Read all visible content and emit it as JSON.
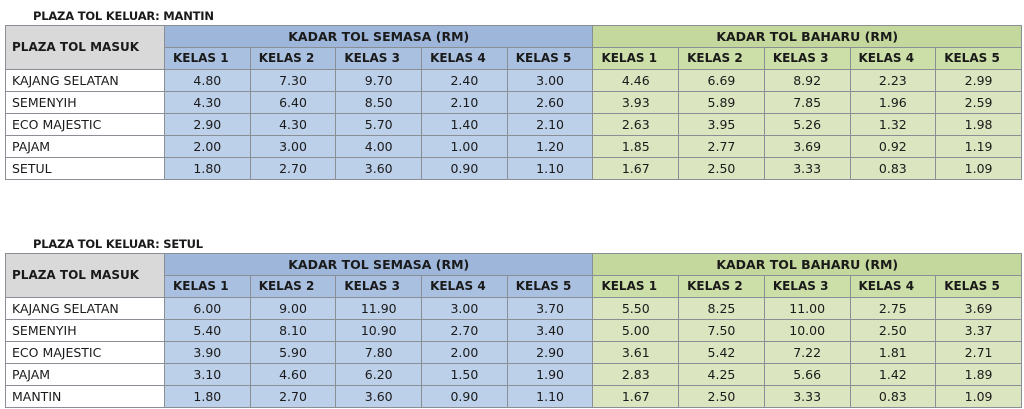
{
  "tables": [
    {
      "title": "PLAZA TOL KELUAR: MANTIN",
      "entry_header": "PLAZA TOL MASUK",
      "current_header": "KADAR TOL SEMASA (RM)",
      "new_header": "KADAR TOL BAHARU (RM)",
      "classes": [
        "KELAS 1",
        "KELAS 2",
        "KELAS 3",
        "KELAS 4",
        "KELAS 5"
      ],
      "rows": [
        {
          "plaza": "KAJANG SELATAN",
          "current": [
            "4.80",
            "7.30",
            "9.70",
            "2.40",
            "3.00"
          ],
          "new": [
            "4.46",
            "6.69",
            "8.92",
            "2.23",
            "2.99"
          ]
        },
        {
          "plaza": "SEMENYIH",
          "current": [
            "4.30",
            "6.40",
            "8.50",
            "2.10",
            "2.60"
          ],
          "new": [
            "3.93",
            "5.89",
            "7.85",
            "1.96",
            "2.59"
          ]
        },
        {
          "plaza": "ECO MAJESTIC",
          "current": [
            "2.90",
            "4.30",
            "5.70",
            "1.40",
            "2.10"
          ],
          "new": [
            "2.63",
            "3.95",
            "5.26",
            "1.32",
            "1.98"
          ]
        },
        {
          "plaza": "PAJAM",
          "current": [
            "2.00",
            "3.00",
            "4.00",
            "1.00",
            "1.20"
          ],
          "new": [
            "1.85",
            "2.77",
            "3.69",
            "0.92",
            "1.19"
          ]
        },
        {
          "plaza": "SETUL",
          "current": [
            "1.80",
            "2.70",
            "3.60",
            "0.90",
            "1.10"
          ],
          "new": [
            "1.67",
            "2.50",
            "3.33",
            "0.83",
            "1.09"
          ]
        }
      ]
    },
    {
      "title": "PLAZA TOL KELUAR: SETUL",
      "entry_header": "PLAZA TOL MASUK",
      "current_header": "KADAR TOL SEMASA (RM)",
      "new_header": "KADAR TOL BAHARU (RM)",
      "classes": [
        "KELAS 1",
        "KELAS 2",
        "KELAS 3",
        "KELAS 4",
        "KELAS 5"
      ],
      "rows": [
        {
          "plaza": "KAJANG SELATAN",
          "current": [
            "6.00",
            "9.00",
            "11.90",
            "3.00",
            "3.70"
          ],
          "new": [
            "5.50",
            "8.25",
            "11.00",
            "2.75",
            "3.69"
          ]
        },
        {
          "plaza": "SEMENYIH",
          "current": [
            "5.40",
            "8.10",
            "10.90",
            "2.70",
            "3.40"
          ],
          "new": [
            "5.00",
            "7.50",
            "10.00",
            "2.50",
            "3.37"
          ]
        },
        {
          "plaza": "ECO MAJESTIC",
          "current": [
            "3.90",
            "5.90",
            "7.80",
            "2.00",
            "2.90"
          ],
          "new": [
            "3.61",
            "5.42",
            "7.22",
            "1.81",
            "2.71"
          ]
        },
        {
          "plaza": "PAJAM",
          "current": [
            "3.10",
            "4.60",
            "6.20",
            "1.50",
            "1.90"
          ],
          "new": [
            "2.83",
            "4.25",
            "5.66",
            "1.42",
            "1.89"
          ]
        },
        {
          "plaza": "MANTIN",
          "current": [
            "1.80",
            "2.70",
            "3.60",
            "0.90",
            "1.10"
          ],
          "new": [
            "1.67",
            "2.50",
            "3.33",
            "0.83",
            "1.09"
          ]
        }
      ]
    }
  ],
  "colors": {
    "current_header": "#9db6da",
    "current_body": "#bdd0ea",
    "new_header": "#c4d79c",
    "new_body": "#dbe6c0",
    "entry_header": "#d9d9d9"
  }
}
